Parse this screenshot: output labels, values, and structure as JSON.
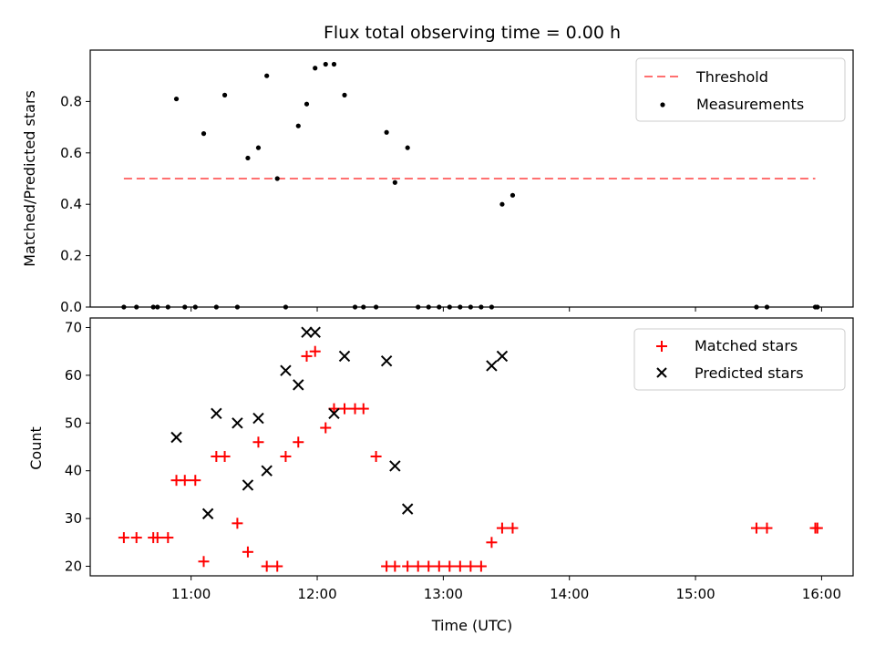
{
  "chart_data": [
    {
      "type": "scatter",
      "title": "Flux total observing time = 0.00 h",
      "xlabel": "",
      "ylabel": "Matched/Predicted stars",
      "xlim": [
        "10:12",
        "16:15"
      ],
      "ylim": [
        0,
        1.0
      ],
      "yticks": [
        "0.0",
        "0.2",
        "0.4",
        "0.6",
        "0.8"
      ],
      "xticks": [
        "11:00",
        "12:00",
        "13:00",
        "14:00",
        "15:00",
        "16:00"
      ],
      "grid": false,
      "legend_position": "top-right",
      "threshold": {
        "name": "Threshold",
        "value": 0.5,
        "x_start": "10:28",
        "x_end": "15:57",
        "color": "#ff7070"
      },
      "series": [
        {
          "name": "Measurements",
          "color": "#000000",
          "x": [
            "10:28",
            "10:34",
            "10:42",
            "10:44",
            "10:49",
            "10:53",
            "10:57",
            "11:02",
            "11:06",
            "11:12",
            "11:16",
            "11:22",
            "11:27",
            "11:32",
            "11:36",
            "11:41",
            "11:45",
            "11:51",
            "11:55",
            "11:59",
            "12:04",
            "12:08",
            "12:13",
            "12:18",
            "12:22",
            "12:28",
            "12:33",
            "12:37",
            "12:43",
            "12:48",
            "12:53",
            "12:58",
            "13:03",
            "13:08",
            "13:13",
            "13:18",
            "13:23",
            "13:28",
            "13:33",
            "15:29",
            "15:34",
            "15:57",
            "15:58"
          ],
          "y": [
            0,
            0,
            0,
            0,
            0,
            0.81,
            0,
            0,
            0.675,
            0,
            0.825,
            0,
            0.58,
            0.62,
            0.9,
            0.5,
            0,
            0.705,
            0.79,
            0.93,
            0.945,
            0.945,
            0.825,
            0,
            0,
            0,
            0.68,
            0.485,
            0.62,
            0,
            0,
            0,
            0,
            0,
            0,
            0,
            0,
            0.4,
            0.435,
            0,
            0,
            0,
            0
          ]
        }
      ]
    },
    {
      "type": "scatter",
      "title": "",
      "xlabel": "Time (UTC)",
      "ylabel": "Count",
      "xlim": [
        "10:12",
        "16:15"
      ],
      "ylim": [
        18,
        72
      ],
      "yticks": [
        "20",
        "30",
        "40",
        "50",
        "60",
        "70"
      ],
      "xticks": [
        "11:00",
        "12:00",
        "13:00",
        "14:00",
        "15:00",
        "16:00"
      ],
      "grid": false,
      "legend_position": "top-right",
      "series": [
        {
          "name": "Matched stars",
          "marker": "plus",
          "color": "#ff0000",
          "x": [
            "10:28",
            "10:34",
            "10:42",
            "10:44",
            "10:49",
            "10:53",
            "10:57",
            "11:02",
            "11:06",
            "11:12",
            "11:16",
            "11:22",
            "11:27",
            "11:32",
            "11:36",
            "11:41",
            "11:45",
            "11:51",
            "11:55",
            "11:59",
            "12:04",
            "12:08",
            "12:13",
            "12:18",
            "12:22",
            "12:28",
            "12:33",
            "12:37",
            "12:43",
            "12:48",
            "12:53",
            "12:58",
            "13:03",
            "13:08",
            "13:13",
            "13:18",
            "13:23",
            "13:28",
            "13:33",
            "15:29",
            "15:34",
            "15:57",
            "15:58"
          ],
          "y": [
            26,
            26,
            26,
            26,
            26,
            38,
            38,
            38,
            21,
            43,
            43,
            29,
            23,
            46,
            20,
            20,
            43,
            46,
            64,
            65,
            49,
            53,
            53,
            53,
            53,
            43,
            20,
            20,
            20,
            20,
            20,
            20,
            20,
            20,
            20,
            20,
            25,
            28,
            28,
            28,
            28,
            28,
            28
          ]
        },
        {
          "name": "Predicted stars",
          "marker": "x",
          "color": "#000000",
          "x": [
            "10:53",
            "11:08",
            "11:12",
            "11:22",
            "11:27",
            "11:32",
            "11:36",
            "11:45",
            "11:51",
            "11:55",
            "11:59",
            "12:08",
            "12:13",
            "12:33",
            "12:37",
            "12:43",
            "13:23",
            "13:28"
          ],
          "y": [
            47,
            31,
            52,
            50,
            37,
            51,
            40,
            61,
            58,
            69,
            69,
            52,
            64,
            63,
            41,
            32,
            62,
            64
          ]
        }
      ]
    }
  ]
}
